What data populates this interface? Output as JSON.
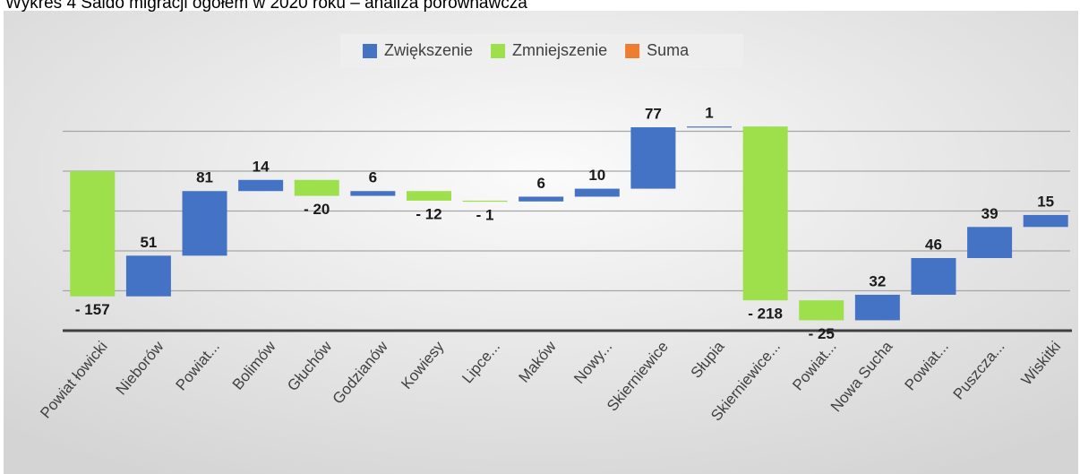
{
  "chart_data": {
    "type": "waterfall",
    "title": "Wykres 4 Saldo migracji ogółem w 2020 roku – analiza porównawcza",
    "legend": [
      {
        "name": "Zwiększenie",
        "color": "#4472c4"
      },
      {
        "name": "Zmniejszenie",
        "color": "#9de04b"
      },
      {
        "name": "Suma",
        "color": "#ed7d31"
      }
    ],
    "categories": [
      "Powiat łowicki",
      "Nieborów",
      "Powiat...",
      "Bolimów",
      "Głuchów",
      "Godzianów",
      "Kowiesy",
      "Lipce...",
      "Maków",
      "Nowy...",
      "Skierniewice",
      "Słupia",
      "Skierniewice...",
      "Powiat...",
      "Nowa Sucha",
      "Powiat...",
      "Puszcza...",
      "Wiskitki"
    ],
    "values": [
      -157,
      51,
      81,
      14,
      -20,
      6,
      -12,
      -1,
      6,
      10,
      77,
      1,
      -218,
      -25,
      32,
      46,
      39,
      15
    ],
    "value_labels": [
      "- 157",
      "51",
      "81",
      "14",
      "- 20",
      "6",
      "- 12",
      "- 1",
      "6",
      "10",
      "77",
      "1",
      "- 218",
      "- 25",
      "32",
      "46",
      "39",
      "15"
    ],
    "ylim": [
      -200,
      200
    ],
    "yticks": [
      -150,
      -100,
      -50,
      0,
      50
    ],
    "grid": true
  }
}
